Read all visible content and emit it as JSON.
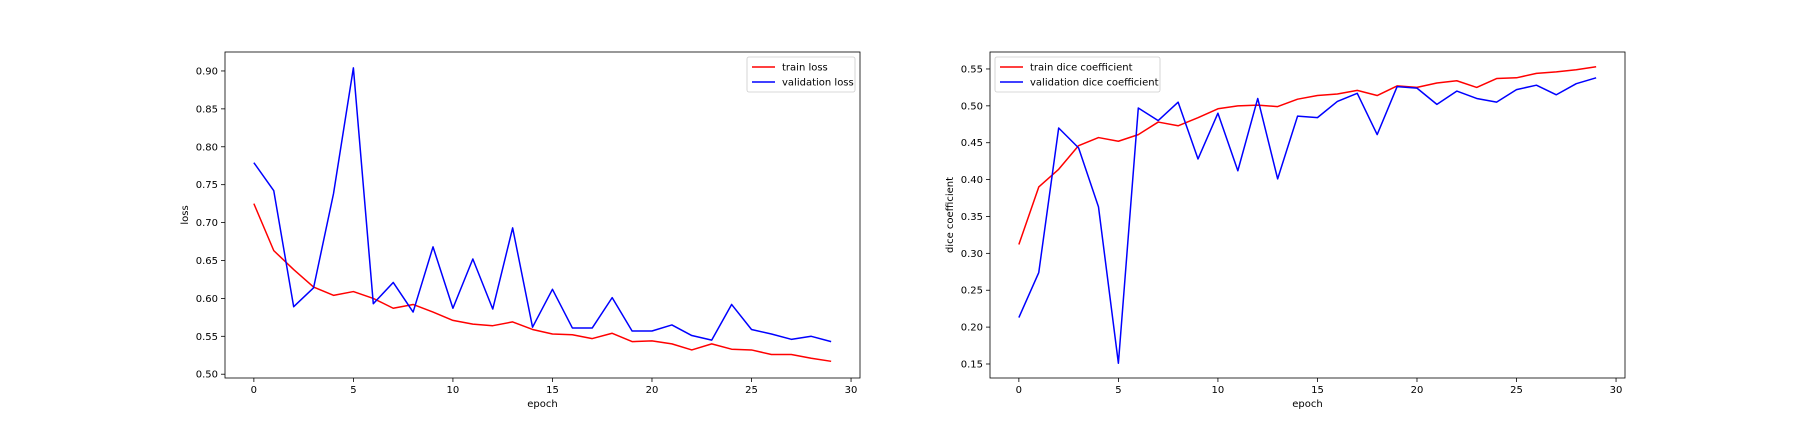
{
  "chart_data": [
    {
      "type": "line",
      "xlabel": "epoch",
      "ylabel": "loss",
      "xlim": [
        -1.45,
        30.45
      ],
      "ylim": [
        0.495,
        0.925
      ],
      "xticks": [
        0,
        5,
        10,
        15,
        20,
        25,
        30
      ],
      "xtick_labels": [
        "0",
        "5",
        "10",
        "15",
        "20",
        "25",
        "30"
      ],
      "yticks": [
        0.5,
        0.55,
        0.6,
        0.65,
        0.7,
        0.75,
        0.8,
        0.85,
        0.9
      ],
      "ytick_labels": [
        "0.50",
        "0.55",
        "0.60",
        "0.65",
        "0.70",
        "0.75",
        "0.80",
        "0.85",
        "0.90"
      ],
      "legend_position": "top-right",
      "grid": false,
      "x": [
        0,
        1,
        2,
        3,
        4,
        5,
        6,
        7,
        8,
        9,
        10,
        11,
        12,
        13,
        14,
        15,
        16,
        17,
        18,
        19,
        20,
        21,
        22,
        23,
        24,
        25,
        26,
        27,
        28,
        29
      ],
      "series": [
        {
          "name": "train loss",
          "color": "#ff0000",
          "values": [
            0.725,
            0.663,
            0.638,
            0.615,
            0.604,
            0.609,
            0.6,
            0.587,
            0.592,
            0.582,
            0.571,
            0.566,
            0.564,
            0.569,
            0.559,
            0.553,
            0.552,
            0.547,
            0.554,
            0.543,
            0.544,
            0.54,
            0.532,
            0.54,
            0.533,
            0.532,
            0.526,
            0.526,
            0.521,
            0.517
          ]
        },
        {
          "name": "validation loss",
          "color": "#0000ff",
          "values": [
            0.779,
            0.742,
            0.589,
            0.614,
            0.738,
            0.904,
            0.593,
            0.621,
            0.582,
            0.668,
            0.587,
            0.652,
            0.586,
            0.693,
            0.562,
            0.612,
            0.561,
            0.561,
            0.601,
            0.557,
            0.557,
            0.565,
            0.551,
            0.545,
            0.592,
            0.559,
            0.553,
            0.546,
            0.55,
            0.543
          ]
        }
      ]
    },
    {
      "type": "line",
      "xlabel": "epoch",
      "ylabel": "dice coefficient",
      "xlim": [
        -1.45,
        30.45
      ],
      "ylim": [
        0.131,
        0.573
      ],
      "xticks": [
        0,
        5,
        10,
        15,
        20,
        25,
        30
      ],
      "xtick_labels": [
        "0",
        "5",
        "10",
        "15",
        "20",
        "25",
        "30"
      ],
      "yticks": [
        0.15,
        0.2,
        0.25,
        0.3,
        0.35,
        0.4,
        0.45,
        0.5,
        0.55
      ],
      "ytick_labels": [
        "0.15",
        "0.20",
        "0.25",
        "0.30",
        "0.35",
        "0.40",
        "0.45",
        "0.50",
        "0.55"
      ],
      "legend_position": "top-left",
      "grid": false,
      "x": [
        0,
        1,
        2,
        3,
        4,
        5,
        6,
        7,
        8,
        9,
        10,
        11,
        12,
        13,
        14,
        15,
        16,
        17,
        18,
        19,
        20,
        21,
        22,
        23,
        24,
        25,
        26,
        27,
        28,
        29
      ],
      "series": [
        {
          "name": "train dice coefficient",
          "color": "#ff0000",
          "values": [
            0.312,
            0.39,
            0.414,
            0.446,
            0.457,
            0.452,
            0.461,
            0.478,
            0.473,
            0.484,
            0.496,
            0.5,
            0.501,
            0.499,
            0.509,
            0.514,
            0.516,
            0.521,
            0.514,
            0.527,
            0.525,
            0.531,
            0.534,
            0.525,
            0.537,
            0.538,
            0.544,
            0.546,
            0.549,
            0.553
          ]
        },
        {
          "name": "validation dice coefficient",
          "color": "#0000ff",
          "values": [
            0.213,
            0.274,
            0.47,
            0.443,
            0.363,
            0.151,
            0.497,
            0.48,
            0.505,
            0.428,
            0.49,
            0.412,
            0.51,
            0.401,
            0.486,
            0.484,
            0.506,
            0.517,
            0.461,
            0.526,
            0.524,
            0.502,
            0.52,
            0.51,
            0.505,
            0.522,
            0.528,
            0.515,
            0.53,
            0.538
          ]
        }
      ]
    }
  ]
}
